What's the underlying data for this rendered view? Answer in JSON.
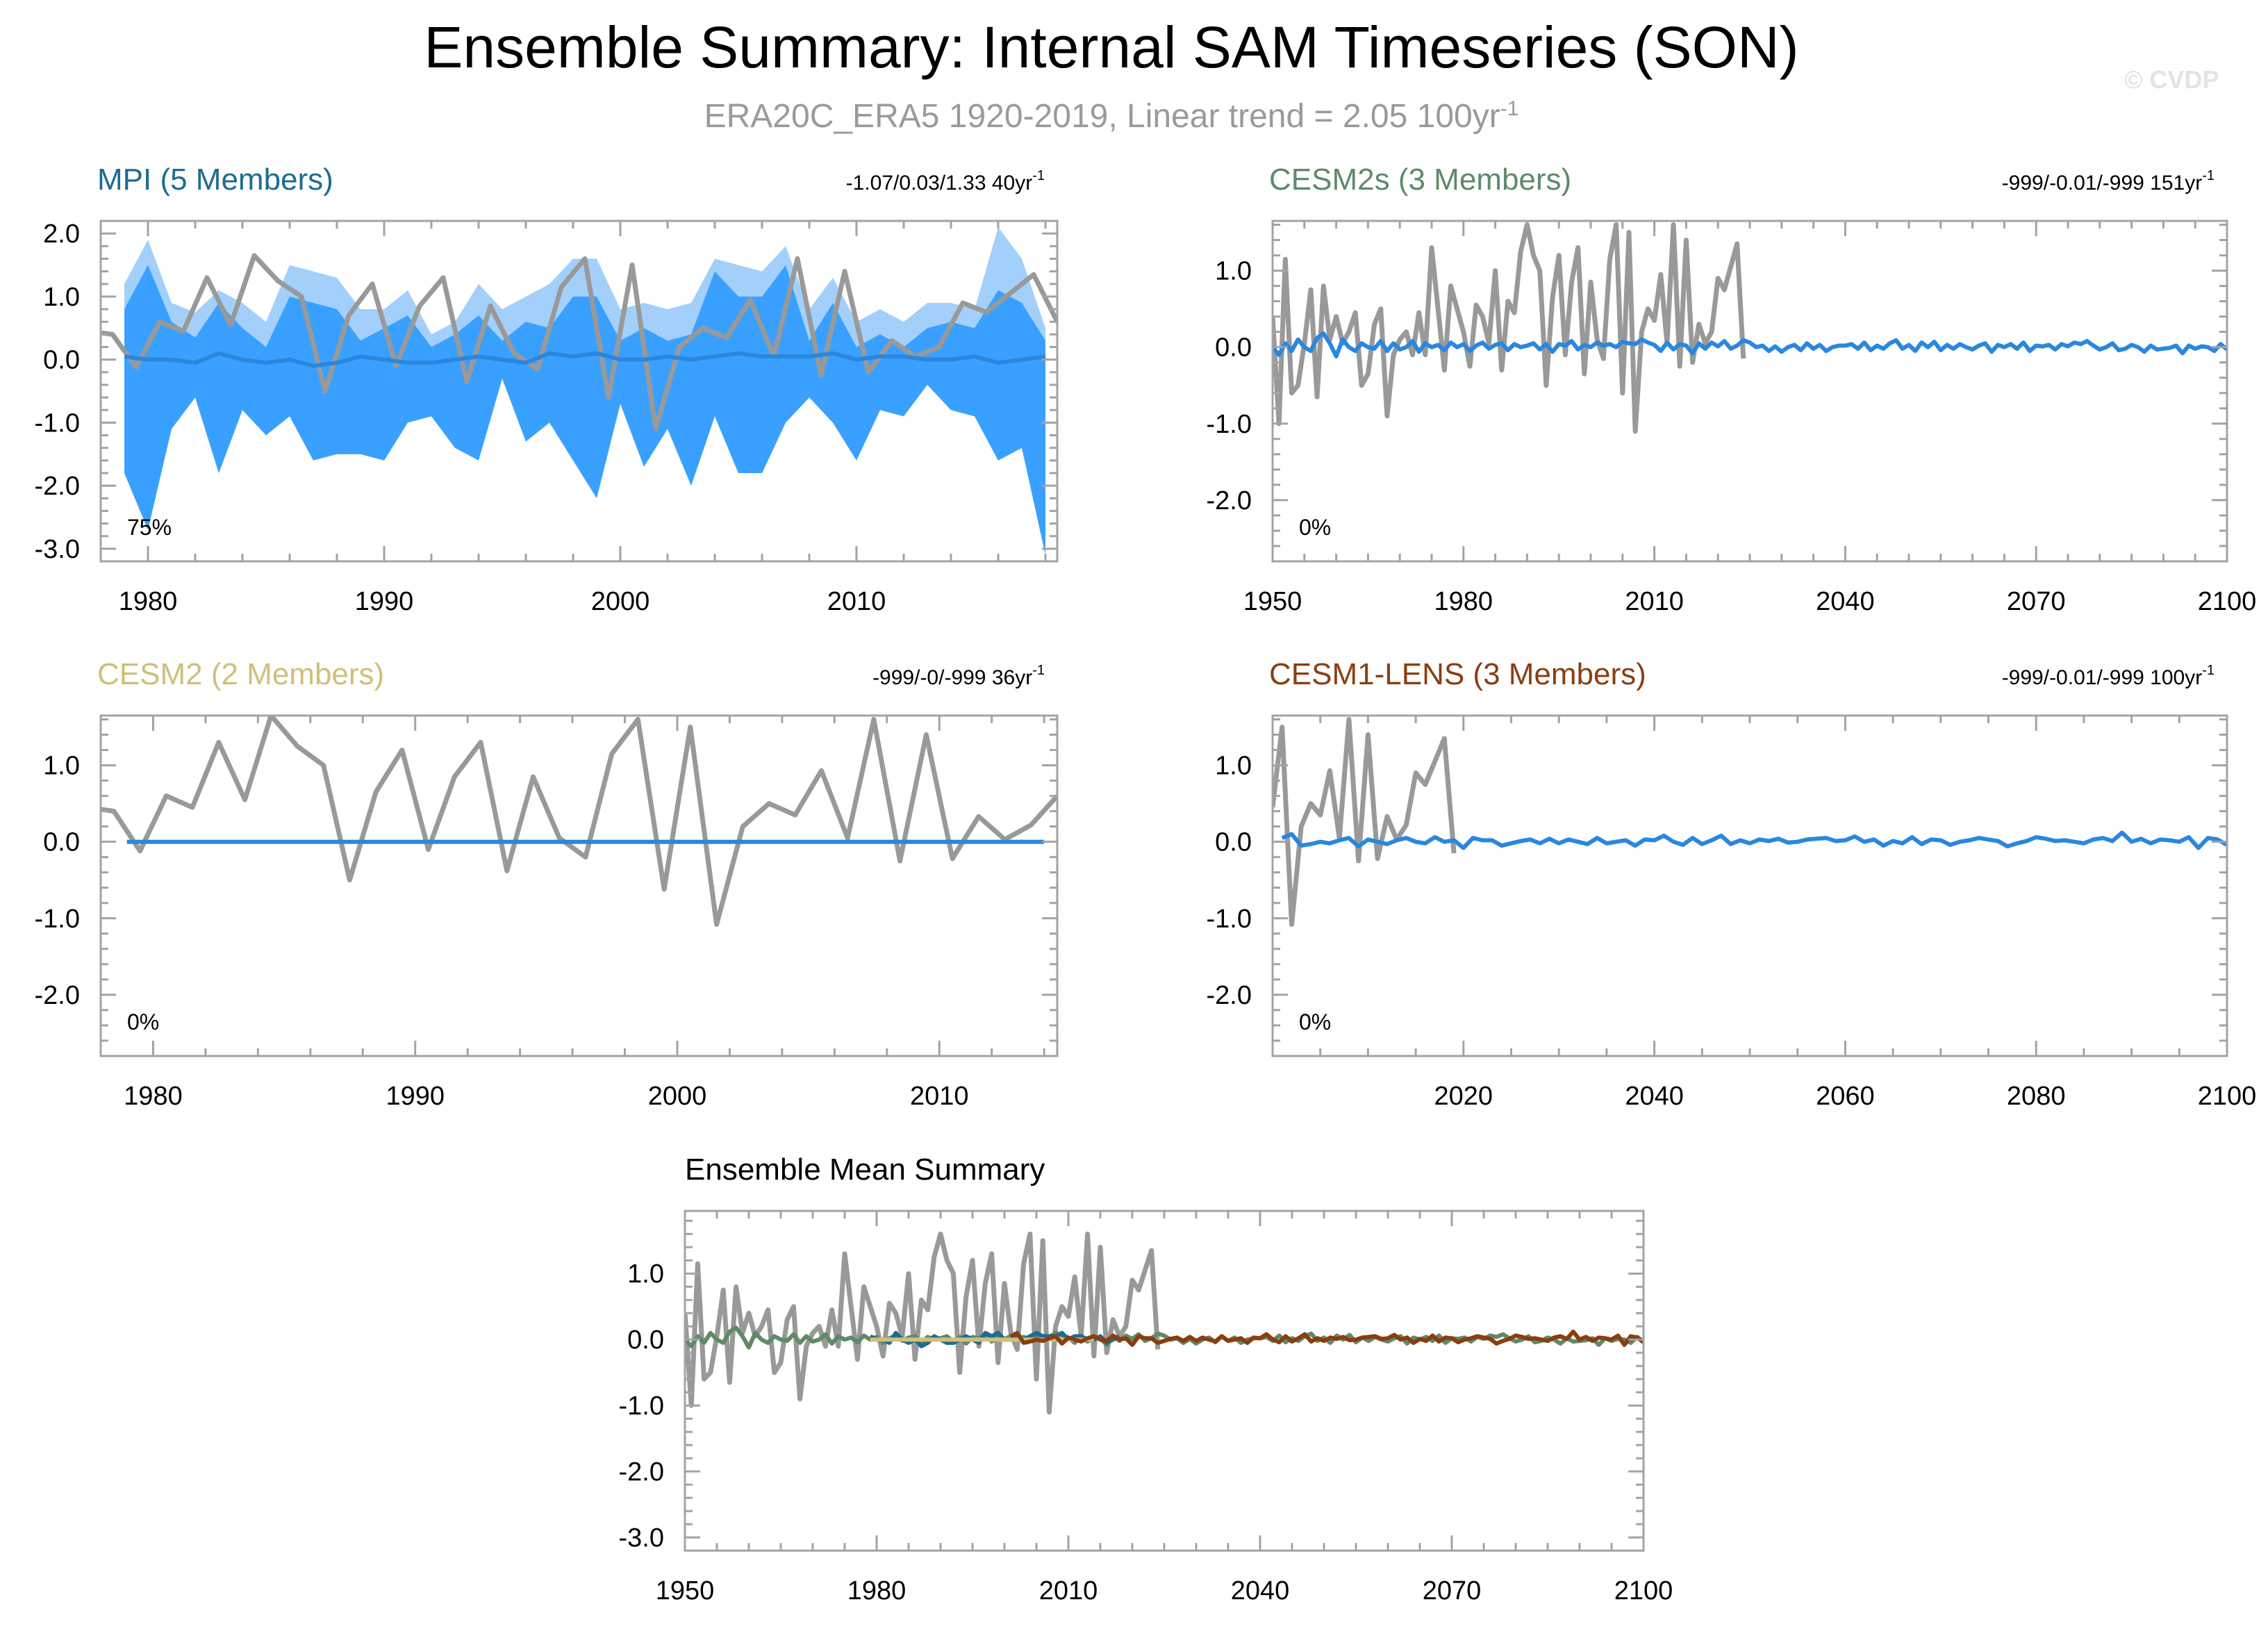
{
  "figure": {
    "title": "Ensemble Summary: Internal SAM Timeseries (SON)",
    "subtitle_main": "ERA20C_ERA5 1920-2019, Linear trend = 2.05 100yr",
    "subtitle_exp": "-1",
    "watermark": "© CVDP"
  },
  "colors": {
    "observed": "#999999",
    "ensemble_mean": "#2a87dd",
    "spread_inner": "#3aa0ff",
    "spread_outer": "#a3d0fb",
    "mpi_title": "#1f6b92",
    "cesm2s_title": "#5f8a68",
    "cesm2_title": "#cfc07a",
    "cesm1_title": "#8a3e10",
    "axis": "#a3a3a3"
  },
  "chart_data": [
    {
      "id": "mpi",
      "type": "area",
      "title": "MPI (5 Members)",
      "stats": "-1.07/0.03/1.33 40yr",
      "stats_exp": "-1",
      "percent_label": "75%",
      "xlim": [
        1978,
        2018.5
      ],
      "ylim": [
        -3.2,
        2.2
      ],
      "xticks": [
        1980,
        1990,
        2000,
        2010
      ],
      "yticks": [
        2.0,
        1.0,
        0.0,
        -1.0,
        -2.0,
        -3.0
      ],
      "ytick_labels": [
        "2.0",
        "1.0",
        "0.0",
        "-1.0",
        "-2.0",
        "-3.0"
      ],
      "x_start": 1979,
      "outer_upper": [
        1.2,
        1.9,
        0.9,
        0.75,
        1.1,
        0.9,
        0.6,
        1.5,
        1.4,
        1.3,
        0.8,
        0.8,
        1.1,
        0.4,
        0.6,
        1.2,
        0.8,
        1.0,
        1.2,
        1.6,
        1.6,
        0.8,
        0.9,
        0.8,
        0.9,
        1.6,
        1.5,
        1.4,
        1.8,
        0.8,
        1.3,
        0.6,
        0.8,
        0.6,
        0.9,
        0.9,
        0.8,
        2.1,
        1.6,
        0.5
      ],
      "inner_upper": [
        0.8,
        1.5,
        0.6,
        0.35,
        0.9,
        0.5,
        0.2,
        1.0,
        0.9,
        0.8,
        0.3,
        0.5,
        0.7,
        0.2,
        0.4,
        0.7,
        0.3,
        0.6,
        0.5,
        1.0,
        1.0,
        0.3,
        0.5,
        0.3,
        0.4,
        1.4,
        1.0,
        1.0,
        1.5,
        0.3,
        0.9,
        0.2,
        0.4,
        0.2,
        0.5,
        0.6,
        0.5,
        1.1,
        0.9,
        0.3
      ],
      "inner_lower": [
        -1.8,
        -2.7,
        -1.1,
        -0.6,
        -1.8,
        -0.8,
        -1.2,
        -0.9,
        -1.6,
        -1.5,
        -1.5,
        -1.6,
        -1.0,
        -0.9,
        -1.4,
        -1.6,
        -0.3,
        -1.3,
        -1.0,
        -1.6,
        -2.2,
        -0.7,
        -1.7,
        -1.1,
        -2.0,
        -0.9,
        -1.8,
        -1.8,
        -1.0,
        -0.6,
        -1.0,
        -1.6,
        -0.8,
        -0.9,
        -0.4,
        -0.8,
        -0.9,
        -1.6,
        -1.4,
        -3.1
      ],
      "outer_lower": [
        -1.8,
        -2.7,
        -1.1,
        -0.6,
        -1.8,
        -0.8,
        -1.2,
        -0.9,
        -1.6,
        -1.5,
        -1.5,
        -1.6,
        -1.0,
        -0.9,
        -1.4,
        -1.6,
        -0.3,
        -1.3,
        -1.0,
        -1.6,
        -2.2,
        -0.7,
        -1.7,
        -1.1,
        -2.0,
        -0.9,
        -1.8,
        -1.8,
        -1.0,
        -0.6,
        -1.0,
        -1.6,
        -0.8,
        -0.9,
        -0.4,
        -0.8,
        -0.9,
        -1.6,
        -1.4,
        -3.1
      ],
      "ensemble_mean": [
        0.05,
        0.0,
        0.0,
        -0.05,
        0.1,
        0.0,
        -0.05,
        0.0,
        -0.1,
        -0.05,
        0.05,
        0.0,
        -0.05,
        -0.05,
        0.0,
        0.05,
        0.0,
        -0.05,
        0.1,
        0.05,
        0.1,
        0.0,
        0.0,
        0.05,
        0.0,
        0.05,
        0.1,
        0.05,
        0.05,
        0.05,
        0.1,
        0.0,
        0.05,
        0.05,
        0.0,
        0.0,
        0.05,
        -0.05,
        0.0,
        0.05
      ],
      "observed": [
        {
          "x": 1977.5,
          "y": 0.45
        },
        {
          "x": 1978.5,
          "y": 0.4
        },
        {
          "x": 1979.5,
          "y": -0.12
        },
        {
          "x": 1980.5,
          "y": 0.6
        },
        {
          "x": 1981.5,
          "y": 0.45
        },
        {
          "x": 1982.5,
          "y": 1.3
        },
        {
          "x": 1983.5,
          "y": 0.55
        },
        {
          "x": 1984.5,
          "y": 1.65
        },
        {
          "x": 1985.5,
          "y": 1.25
        },
        {
          "x": 1986.5,
          "y": 1.0
        },
        {
          "x": 1987.5,
          "y": -0.5
        },
        {
          "x": 1988.5,
          "y": 0.7
        },
        {
          "x": 1989.5,
          "y": 1.2
        },
        {
          "x": 1990.5,
          "y": -0.1
        },
        {
          "x": 1991.5,
          "y": 0.85
        },
        {
          "x": 1992.5,
          "y": 1.3
        },
        {
          "x": 1993.5,
          "y": -0.35
        },
        {
          "x": 1994.5,
          "y": 0.85
        },
        {
          "x": 1995.5,
          "y": 0.1
        },
        {
          "x": 1996.5,
          "y": -0.15
        },
        {
          "x": 1997.5,
          "y": 1.15
        },
        {
          "x": 1998.5,
          "y": 1.6
        },
        {
          "x": 1999.5,
          "y": -0.6
        },
        {
          "x": 2000.5,
          "y": 1.5
        },
        {
          "x": 2001.5,
          "y": -1.1
        },
        {
          "x": 2002.5,
          "y": 0.2
        },
        {
          "x": 2003.5,
          "y": 0.5
        },
        {
          "x": 2004.5,
          "y": 0.35
        },
        {
          "x": 2005.5,
          "y": 0.95
        },
        {
          "x": 2006.5,
          "y": 0.05
        },
        {
          "x": 2007.5,
          "y": 1.6
        },
        {
          "x": 2008.5,
          "y": -0.25
        },
        {
          "x": 2009.5,
          "y": 1.4
        },
        {
          "x": 2010.5,
          "y": -0.2
        },
        {
          "x": 2011.5,
          "y": 0.3
        },
        {
          "x": 2012.5,
          "y": 0.05
        },
        {
          "x": 2013.5,
          "y": 0.2
        },
        {
          "x": 2014.5,
          "y": 0.9
        },
        {
          "x": 2015.5,
          "y": 0.75
        },
        {
          "x": 2016.5,
          "y": 1.05
        },
        {
          "x": 2017.5,
          "y": 1.35
        },
        {
          "x": 2018.5,
          "y": 0.6
        }
      ]
    },
    {
      "id": "cesm2s",
      "type": "line",
      "title": "CESM2s (3 Members)",
      "stats": "-999/-0.01/-999 151yr",
      "stats_exp": "-1",
      "percent_label": "0%",
      "xlim": [
        1950,
        2100
      ],
      "ylim": [
        -2.8,
        1.65
      ],
      "xticks": [
        1950,
        1980,
        2010,
        2040,
        2070,
        2100
      ],
      "yticks": [
        1.0,
        0.0,
        -1.0,
        -2.0
      ],
      "ytick_labels": [
        "1.0",
        "0.0",
        "-1.0",
        "-2.0"
      ],
      "mean_x_start": 1950,
      "ensemble_mean": [
        0.0,
        -0.1,
        0.05,
        -0.05,
        0.1,
        0.0,
        -0.05,
        0.12,
        0.18,
        0.05,
        -0.12,
        0.1,
        0.0,
        -0.05,
        0.05,
        0.0,
        -0.02,
        0.08,
        -0.05,
        0.05,
        -0.03,
        0.0,
        0.08,
        -0.06,
        0.05,
        0.0,
        0.03,
        -0.04,
        0.06,
        0.0,
        0.04,
        -0.05,
        0.02,
        0.06,
        -0.02,
        0.03,
        0.05,
        -0.04,
        0.04,
        0.0,
        0.02,
        0.05,
        -0.03,
        0.04,
        -0.06,
        0.04,
        0.02,
        0.08,
        -0.03,
        0.03,
        0.0,
        0.06,
        0.02,
        0.04,
        0.0,
        0.07,
        0.05,
        0.04,
        0.1,
        0.06,
        0.03,
        -0.05,
        0.06,
        -0.03,
        0.04,
        0.02,
        -0.08,
        0.05,
        -0.02,
        0.06,
        0.01,
        0.08,
        -0.02,
        0.02,
        0.09,
        0.06,
        0.0,
        0.02,
        -0.05,
        0.01,
        -0.06,
        0.0,
        0.03,
        -0.04,
        0.05,
        -0.02,
        0.03,
        -0.05,
        0.0,
        0.02,
        0.02,
        0.04,
        -0.02,
        0.06,
        -0.04,
        0.02,
        -0.02,
        0.05,
        0.09,
        -0.02,
        0.03,
        -0.05,
        0.06,
        0.0,
        0.07,
        -0.04,
        0.03,
        -0.02,
        0.04,
        0.0,
        -0.03,
        0.02,
        0.05,
        -0.06,
        0.03,
        0.0,
        0.04,
        -0.02,
        0.06,
        -0.05,
        0.02,
        0.01,
        0.03,
        -0.03,
        0.04,
        0.01,
        0.06,
        0.04,
        0.08,
        0.02,
        -0.03,
        0.0,
        0.05,
        -0.04,
        -0.02,
        0.03,
        0.0,
        -0.06,
        0.02,
        -0.03,
        -0.02,
        -0.01,
        0.02,
        -0.08,
        0.02,
        -0.02,
        0.01,
        0.0,
        -0.05,
        0.04,
        -0.03,
        0.0
      ],
      "observed_x_start": 1950,
      "observed": [
        0.4,
        -1.0,
        1.15,
        -0.6,
        -0.5,
        0.05,
        0.75,
        -0.65,
        0.8,
        0.1,
        0.4,
        0.05,
        0.2,
        0.45,
        -0.5,
        -0.35,
        0.3,
        0.5,
        -0.9,
        -0.1,
        0.1,
        0.2,
        -0.1,
        0.45,
        -0.1,
        1.3,
        0.5,
        -0.3,
        0.8,
        0.5,
        0.2,
        -0.25,
        0.55,
        0.4,
        0.05,
        1.0,
        -0.3,
        0.6,
        0.45,
        1.25,
        1.6,
        1.2,
        1.0,
        -0.5,
        0.65,
        1.2,
        -0.1,
        0.85,
        1.3,
        -0.35,
        0.85,
        0.1,
        -0.15,
        1.15,
        1.6,
        -0.6,
        1.5,
        -1.1,
        0.2,
        0.5,
        0.35,
        0.95,
        0.05,
        1.6,
        -0.25,
        1.4,
        -0.2,
        0.3,
        0.05,
        0.2,
        0.9,
        0.75,
        1.05,
        1.35,
        -0.15
      ]
    },
    {
      "id": "cesm2",
      "type": "line",
      "title": "CESM2 (2 Members)",
      "stats": "-999/-0/-999 36yr",
      "stats_exp": "-1",
      "percent_label": "0%",
      "xlim": [
        1978,
        2014.5
      ],
      "ylim": [
        -2.8,
        1.65
      ],
      "xticks": [
        1980,
        1990,
        2000,
        2010
      ],
      "yticks": [
        1.0,
        0.0,
        -1.0,
        -2.0
      ],
      "ytick_labels": [
        "1.0",
        "0.0",
        "-1.0",
        "-2.0"
      ],
      "ensemble_mean_x": [
        1979,
        2014
      ],
      "ensemble_mean_y": [
        0.0,
        0.0
      ],
      "observed": [
        {
          "x": 1977.5,
          "y": 0.45
        },
        {
          "x": 1978.5,
          "y": 0.4
        },
        {
          "x": 1979.5,
          "y": -0.12
        },
        {
          "x": 1980.5,
          "y": 0.6
        },
        {
          "x": 1981.5,
          "y": 0.45
        },
        {
          "x": 1982.5,
          "y": 1.3
        },
        {
          "x": 1983.5,
          "y": 0.55
        },
        {
          "x": 1984.5,
          "y": 1.65
        },
        {
          "x": 1985.5,
          "y": 1.25
        },
        {
          "x": 1986.5,
          "y": 1.0
        },
        {
          "x": 1987.5,
          "y": -0.5
        },
        {
          "x": 1988.5,
          "y": 0.65
        },
        {
          "x": 1989.5,
          "y": 1.2
        },
        {
          "x": 1990.5,
          "y": -0.1
        },
        {
          "x": 1991.5,
          "y": 0.85
        },
        {
          "x": 1992.5,
          "y": 1.3
        },
        {
          "x": 1993.5,
          "y": -0.38
        },
        {
          "x": 1994.5,
          "y": 0.85
        },
        {
          "x": 1995.5,
          "y": 0.05
        },
        {
          "x": 1996.5,
          "y": -0.2
        },
        {
          "x": 1997.5,
          "y": 1.15
        },
        {
          "x": 1998.5,
          "y": 1.6
        },
        {
          "x": 1999.5,
          "y": -0.62
        },
        {
          "x": 2000.5,
          "y": 1.5
        },
        {
          "x": 2001.5,
          "y": -1.08
        },
        {
          "x": 2002.5,
          "y": 0.2
        },
        {
          "x": 2003.5,
          "y": 0.5
        },
        {
          "x": 2004.5,
          "y": 0.35
        },
        {
          "x": 2005.5,
          "y": 0.93
        },
        {
          "x": 2006.5,
          "y": 0.05
        },
        {
          "x": 2007.5,
          "y": 1.6
        },
        {
          "x": 2008.5,
          "y": -0.25
        },
        {
          "x": 2009.5,
          "y": 1.4
        },
        {
          "x": 2010.5,
          "y": -0.22
        },
        {
          "x": 2011.5,
          "y": 0.33
        },
        {
          "x": 2012.5,
          "y": 0.03
        },
        {
          "x": 2013.5,
          "y": 0.22
        },
        {
          "x": 2014.5,
          "y": 0.6
        }
      ]
    },
    {
      "id": "cesm1",
      "type": "line",
      "title": "CESM1-LENS (3 Members)",
      "stats": "-999/-0.01/-999 100yr",
      "stats_exp": "-1",
      "percent_label": "0%",
      "xlim": [
        2000,
        2100
      ],
      "ylim": [
        -2.8,
        1.65
      ],
      "xticks": [
        2020,
        2040,
        2060,
        2080,
        2100
      ],
      "yticks": [
        1.0,
        0.0,
        -1.0,
        -2.0
      ],
      "ytick_labels": [
        "1.0",
        "0.0",
        "-1.0",
        "-2.0"
      ],
      "mean_x_start": 2001,
      "ensemble_mean": [
        0.05,
        0.1,
        -0.05,
        -0.03,
        0.0,
        -0.02,
        0.02,
        0.05,
        -0.06,
        0.03,
        0.0,
        -0.03,
        0.02,
        0.05,
        0.0,
        -0.02,
        0.06,
        0.0,
        0.02,
        -0.08,
        0.05,
        0.02,
        0.02,
        -0.05,
        -0.02,
        0.01,
        0.03,
        -0.02,
        0.04,
        -0.02,
        0.03,
        0.0,
        -0.03,
        0.05,
        -0.02,
        0.0,
        0.02,
        -0.05,
        0.03,
        0.02,
        0.08,
        0.0,
        -0.04,
        0.05,
        -0.03,
        0.02,
        0.08,
        -0.03,
        0.02,
        -0.02,
        0.03,
        0.01,
        0.04,
        -0.01,
        0.0,
        0.03,
        0.04,
        0.05,
        0.01,
        0.02,
        0.07,
        0.0,
        0.03,
        -0.05,
        0.01,
        -0.02,
        0.06,
        -0.03,
        0.03,
        0.02,
        -0.04,
        0.0,
        0.02,
        0.05,
        0.03,
        0.01,
        -0.06,
        -0.02,
        0.01,
        0.06,
        0.04,
        0.01,
        0.02,
        0.0,
        -0.02,
        0.03,
        0.05,
        0.01,
        0.12,
        0.0,
        0.04,
        -0.02,
        0.03,
        0.02,
        0.0,
        0.06,
        -0.08,
        0.05,
        0.03,
        -0.04,
        0.0
      ],
      "observed_x_start": 2000,
      "observed": [
        0.45,
        1.5,
        -1.08,
        0.2,
        0.5,
        0.35,
        0.93,
        0.05,
        1.6,
        -0.25,
        1.4,
        -0.22,
        0.33,
        0.03,
        0.22,
        0.9,
        0.75,
        1.05,
        1.35,
        -0.15
      ]
    },
    {
      "id": "ensemble-mean",
      "type": "line",
      "title": "Ensemble Mean Summary",
      "xlim": [
        1950,
        2100
      ],
      "ylim": [
        -3.2,
        1.95
      ],
      "xticks": [
        1950,
        1980,
        2010,
        2040,
        2070,
        2100
      ],
      "yticks": [
        1.0,
        0.0,
        -1.0,
        -2.0,
        -3.0
      ],
      "ytick_labels": [
        "1.0",
        "0.0",
        "-1.0",
        "-2.0",
        "-3.0"
      ],
      "observed_x_start": 1950,
      "observed": [
        0.4,
        -1.0,
        1.15,
        -0.6,
        -0.5,
        0.05,
        0.75,
        -0.65,
        0.8,
        0.1,
        0.4,
        0.05,
        0.2,
        0.45,
        -0.5,
        -0.35,
        0.3,
        0.5,
        -0.9,
        -0.1,
        0.1,
        0.2,
        -0.1,
        0.45,
        -0.1,
        1.3,
        0.5,
        -0.3,
        0.8,
        0.5,
        0.2,
        -0.25,
        0.55,
        0.4,
        0.05,
        1.0,
        -0.3,
        0.6,
        0.45,
        1.25,
        1.6,
        1.2,
        1.0,
        -0.5,
        0.65,
        1.2,
        -0.1,
        0.85,
        1.3,
        -0.35,
        0.85,
        0.1,
        -0.15,
        1.15,
        1.6,
        -0.6,
        1.5,
        -1.1,
        0.2,
        0.5,
        0.35,
        0.95,
        0.05,
        1.6,
        -0.25,
        1.4,
        -0.2,
        0.3,
        0.05,
        0.2,
        0.9,
        0.75,
        1.05,
        1.35,
        -0.15
      ],
      "series": [
        {
          "color_key": "cesm2s_title",
          "x_start": 1950,
          "values_ref": "cesm2s"
        },
        {
          "color_key": "mpi_title",
          "x_start": 1979,
          "values_ref": "mpi"
        },
        {
          "color_key": "cesm2_title",
          "x_start": 1979,
          "values_ref": "cesm2"
        },
        {
          "color_key": "cesm1_title",
          "x_start": 2001,
          "values_ref": "cesm1"
        }
      ]
    }
  ]
}
